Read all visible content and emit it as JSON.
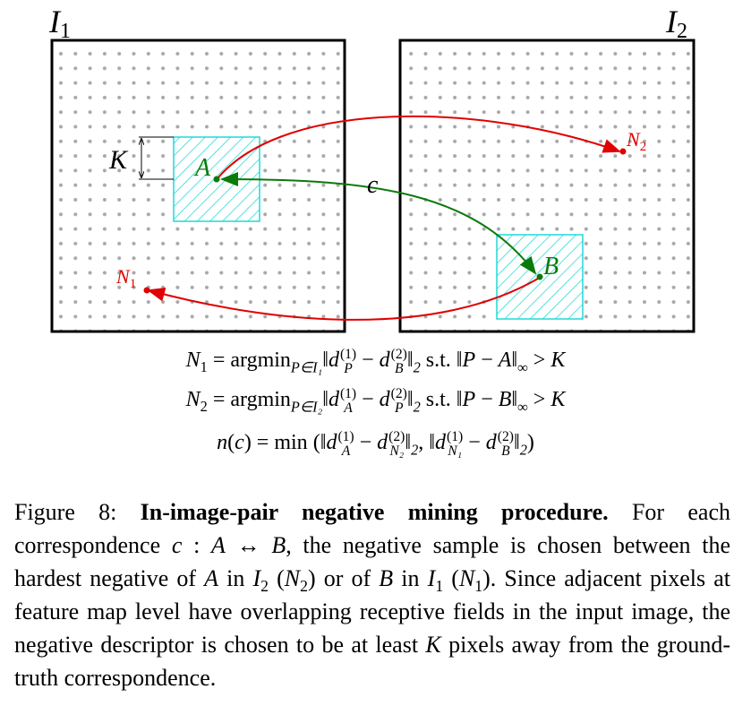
{
  "diagram": {
    "images": [
      {
        "base": "I",
        "sub": "1"
      },
      {
        "base": "I",
        "sub": "2"
      }
    ],
    "labels": {
      "K": "K",
      "A": "A",
      "B": "B",
      "c": "c",
      "N1": {
        "base": "N",
        "sub": "1"
      },
      "N2": {
        "base": "N",
        "sub": "2"
      }
    }
  },
  "equations": [
    [
      {
        "base": "N",
        "sub": "1"
      },
      " = ",
      {
        "op": "argmin",
        "sub": "P∈I₁"
      },
      "‖",
      {
        "base": "d",
        "sub": "P",
        "sup": "(1)"
      },
      " − ",
      {
        "base": "d",
        "sub": "B",
        "sup": "(2)"
      },
      {
        "op": "‖",
        "sub": "2"
      },
      " s.t. ‖",
      {
        "base": "P"
      },
      " − ",
      {
        "base": "A"
      },
      {
        "op": "‖",
        "sub": "∞"
      },
      " > ",
      {
        "base": "K"
      }
    ],
    [
      {
        "base": "N",
        "sub": "2"
      },
      " = ",
      {
        "op": "argmin",
        "sub": "P∈I₂"
      },
      "‖",
      {
        "base": "d",
        "sub": "A",
        "sup": "(1)"
      },
      " − ",
      {
        "base": "d",
        "sub": "P",
        "sup": "(2)"
      },
      {
        "op": "‖",
        "sub": "2"
      },
      " s.t. ‖",
      {
        "base": "P"
      },
      " − ",
      {
        "base": "B"
      },
      {
        "op": "‖",
        "sub": "∞"
      },
      " > ",
      {
        "base": "K"
      }
    ],
    [
      {
        "base": "n"
      },
      "(",
      {
        "base": "c"
      },
      ") = min ",
      "(",
      "‖",
      {
        "base": "d",
        "sub": "A",
        "sup": "(1)"
      },
      " − ",
      {
        "base": "d",
        "sub": "N₂",
        "sup": "(2)"
      },
      {
        "op": "‖",
        "sub": "2"
      },
      ", ‖",
      {
        "base": "d",
        "sub": "N₁",
        "sup": "(1)"
      },
      " − ",
      {
        "base": "d",
        "sub": "B",
        "sup": "(2)"
      },
      {
        "op": "‖",
        "sub": "2"
      },
      ")"
    ]
  ],
  "caption": [
    {
      "text": "Figure 8: "
    },
    {
      "bold": "In-image-pair negative mining procedure."
    },
    " For each correspondence ",
    {
      "base": "c"
    },
    " : ",
    {
      "base": "A"
    },
    " ↔ ",
    {
      "base": "B"
    },
    ", the negative sample is chosen between the hardest negative of ",
    {
      "base": "A"
    },
    " in ",
    {
      "base": "I",
      "sub": "2"
    },
    " (",
    {
      "base": "N",
      "sub": "2"
    },
    ") or of ",
    {
      "base": "B"
    },
    " in ",
    {
      "base": "I",
      "sub": "1"
    },
    " (",
    {
      "base": "N",
      "sub": "1"
    },
    "). Since adjacent pixels at feature map level have overlapping receptive fields in the input image, the negative descriptor is chosen to be at least ",
    {
      "base": "K"
    },
    " pixels away from the ground-truth correspondence."
  ]
}
